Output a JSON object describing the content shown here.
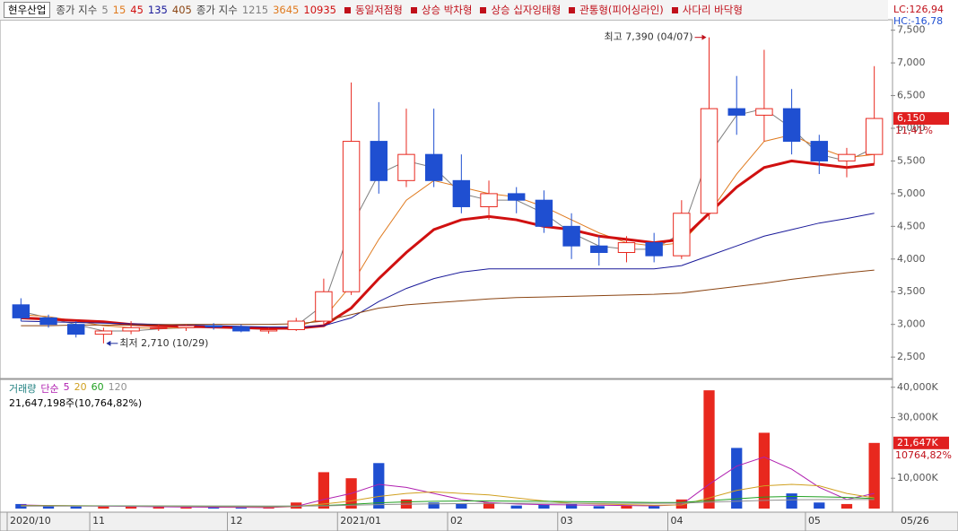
{
  "chart_data": {
    "type": "candlestick",
    "stock_name": "현우산업",
    "ma_label": "종가 지수",
    "mas": [
      {
        "name": "5",
        "color": "#808080",
        "values": [
          3200,
          3100,
          3000,
          2900,
          2900,
          2930,
          2950,
          2960,
          2940,
          2920,
          2980,
          3300,
          4500,
          5300,
          5500,
          5400,
          5000,
          4900,
          4900,
          4700,
          4400,
          4200,
          4150,
          4150,
          4400,
          5600,
          6200,
          6300,
          6000,
          5600,
          5500,
          5700
        ]
      },
      {
        "name": "15",
        "color": "#e07b20",
        "values": [
          3150,
          3120,
          3050,
          2980,
          2950,
          2940,
          2950,
          2960,
          2950,
          2940,
          2960,
          3100,
          3600,
          4300,
          4900,
          5200,
          5100,
          5000,
          4950,
          4800,
          4600,
          4400,
          4250,
          4200,
          4250,
          4700,
          5300,
          5800,
          5900,
          5700,
          5550,
          5600
        ]
      },
      {
        "name": "45",
        "color": "#d01010",
        "width": 3,
        "values": [
          3100,
          3080,
          3060,
          3040,
          3000,
          2980,
          2970,
          2960,
          2950,
          2940,
          2940,
          2980,
          3250,
          3700,
          4100,
          4450,
          4600,
          4650,
          4600,
          4500,
          4450,
          4350,
          4300,
          4250,
          4300,
          4700,
          5100,
          5400,
          5500,
          5450,
          5400,
          5450
        ]
      },
      {
        "name": "135",
        "color": "#1a1a9a",
        "values": [
          3050,
          3040,
          3030,
          3020,
          3010,
          3000,
          2990,
          2980,
          2970,
          2960,
          2960,
          2980,
          3100,
          3350,
          3550,
          3700,
          3800,
          3850,
          3850,
          3850,
          3850,
          3850,
          3850,
          3850,
          3900,
          4050,
          4200,
          4350,
          4450,
          4550,
          4620,
          4700
        ]
      },
      {
        "name": "405",
        "color": "#8b4513",
        "values": [
          2980,
          2980,
          2990,
          2990,
          2990,
          2995,
          3000,
          3000,
          3000,
          3000,
          3010,
          3050,
          3150,
          3250,
          3300,
          3330,
          3360,
          3390,
          3410,
          3420,
          3430,
          3440,
          3450,
          3460,
          3480,
          3530,
          3580,
          3630,
          3690,
          3740,
          3790,
          3830
        ]
      }
    ],
    "ma_label2": "종가 지수",
    "extra_mas": [
      {
        "name": "1215",
        "color": "#808080"
      },
      {
        "name": "3645",
        "color": "#e07b20"
      },
      {
        "name": "10935",
        "color": "#d01010"
      }
    ],
    "patterns": [
      "동일저점형",
      "상승 박차형",
      "상승 십자잉태형",
      "관통형(피어싱라인)",
      "사다리 바닥형"
    ],
    "pattern_color": "#c0101a",
    "lc": "LC:126,94",
    "hc": "HC:-16,78",
    "up_color": "#e8281e",
    "down_color": "#1f4fd1",
    "open": [
      3300,
      3100,
      3000,
      2850,
      2900,
      2950,
      2950,
      2980,
      2960,
      2900,
      2920,
      3050,
      3500,
      5800,
      5200,
      5600,
      5200,
      4800,
      5000,
      4900,
      4500,
      4200,
      4100,
      4250,
      4050,
      4700,
      6300,
      6200,
      6300,
      5800,
      5500,
      5600
    ],
    "high": [
      3400,
      3150,
      3050,
      2950,
      3050,
      3000,
      3000,
      3020,
      3000,
      2950,
      3100,
      3700,
      6700,
      6400,
      6300,
      6300,
      5600,
      5200,
      5100,
      5050,
      4700,
      4350,
      4350,
      4400,
      4900,
      7390,
      6800,
      7200,
      6600,
      5900,
      5700,
      6950
    ],
    "low": [
      3050,
      2950,
      2800,
      2710,
      2850,
      2900,
      2900,
      2920,
      2880,
      2860,
      2900,
      3000,
      3450,
      5000,
      5100,
      5100,
      4700,
      4600,
      4700,
      4400,
      4000,
      3900,
      3950,
      3950,
      4000,
      4600,
      5900,
      5800,
      5600,
      5300,
      5250,
      5450
    ],
    "close": [
      3100,
      3000,
      2850,
      2900,
      2950,
      2950,
      2980,
      2960,
      2900,
      2920,
      3050,
      3500,
      5800,
      5200,
      5600,
      5200,
      4800,
      5000,
      4900,
      4500,
      4200,
      4100,
      4250,
      4050,
      4700,
      6300,
      6200,
      6300,
      5800,
      5500,
      5600,
      6150
    ],
    "ylim": [
      2200,
      7660
    ],
    "yticks": [
      {
        "value": 2500,
        "label": "2,500"
      },
      {
        "value": 3000,
        "label": "3,000"
      },
      {
        "value": 3500,
        "label": "3,500"
      },
      {
        "value": 4000,
        "label": "4,000"
      },
      {
        "value": 4500,
        "label": "4,500"
      },
      {
        "value": 5000,
        "label": "5,000"
      },
      {
        "value": 5500,
        "label": "5,500"
      },
      {
        "value": 6000,
        "label": "6,000"
      },
      {
        "value": 6500,
        "label": "6,500"
      },
      {
        "value": 7000,
        "label": "7,000"
      },
      {
        "value": 7500,
        "label": "7,500"
      }
    ],
    "current": {
      "value": 6150,
      "label": "6,150",
      "change": "11,41%"
    },
    "annotations": [
      {
        "text": "최고 7,390 (04/07)",
        "value": 7390,
        "index": 25,
        "color": "#c0101a"
      },
      {
        "text": "최저 2,710 (10/29)",
        "value": 2710,
        "index": 3,
        "color": "#1f2fa0"
      }
    ],
    "volume_label": "거래량",
    "volume_ma_label": "단순",
    "volume_mas": [
      {
        "name": "5",
        "color": "#b020b0",
        "values": [
          1200,
          1000,
          900,
          800,
          700,
          600,
          500,
          450,
          400,
          350,
          700,
          3000,
          5000,
          8000,
          7000,
          5000,
          3000,
          2000,
          1500,
          1300,
          1200,
          1100,
          1000,
          900,
          1300,
          8000,
          14000,
          17000,
          13000,
          7000,
          3000,
          5000
        ]
      },
      {
        "name": "20",
        "color": "#d0a020",
        "values": [
          1000,
          1000,
          950,
          900,
          850,
          800,
          750,
          700,
          650,
          600,
          700,
          1500,
          2500,
          4000,
          5000,
          5500,
          5000,
          4500,
          3500,
          2500,
          1800,
          1500,
          1300,
          1100,
          1200,
          3500,
          6000,
          7500,
          8000,
          7500,
          5000,
          3500
        ]
      },
      {
        "name": "60",
        "color": "#20a020",
        "values": [
          900,
          900,
          900,
          900,
          880,
          860,
          840,
          820,
          800,
          780,
          800,
          1000,
          1400,
          1900,
          2200,
          2400,
          2500,
          2500,
          2450,
          2400,
          2300,
          2200,
          2100,
          2000,
          2050,
          2600,
          3200,
          3800,
          4000,
          3900,
          3700,
          3300
        ]
      },
      {
        "name": "120",
        "color": "#909090",
        "values": [
          800,
          800,
          800,
          800,
          800,
          800,
          800,
          800,
          800,
          800,
          820,
          900,
          1100,
          1300,
          1450,
          1550,
          1650,
          1700,
          1750,
          1750,
          1750,
          1750,
          1750,
          1750,
          1800,
          2100,
          2400,
          2700,
          2900,
          2950,
          3000,
          3000
        ]
      }
    ],
    "volume_info": "21,647,198주(10,764,82%)",
    "volume": [
      1500,
      800,
      700,
      900,
      600,
      500,
      400,
      400,
      300,
      300,
      2000,
      12000,
      10000,
      15000,
      3000,
      2000,
      1500,
      2000,
      1000,
      1200,
      1500,
      800,
      1000,
      800,
      3000,
      39000,
      20000,
      25000,
      5000,
      2000,
      1500,
      21647
    ],
    "volume_ylim": [
      0,
      42000
    ],
    "volume_yticks": [
      {
        "value": 10000,
        "label": "10,000K"
      },
      {
        "value": 30000,
        "label": "30,000K"
      },
      {
        "value": 40000,
        "label": "40,000K"
      }
    ],
    "volume_current": {
      "value": 21647,
      "label": "21,647K",
      "ratio": "10764,82%"
    },
    "xticks": [
      {
        "value": 0,
        "label": "2020/10"
      },
      {
        "value": 3,
        "label": "11"
      },
      {
        "value": 8,
        "label": "12"
      },
      {
        "value": 12,
        "label": "2021/01"
      },
      {
        "value": 16,
        "label": "02"
      },
      {
        "value": 20,
        "label": "03"
      },
      {
        "value": 24,
        "label": "04"
      },
      {
        "value": 29,
        "label": "05"
      }
    ],
    "last_date": "05/26"
  }
}
